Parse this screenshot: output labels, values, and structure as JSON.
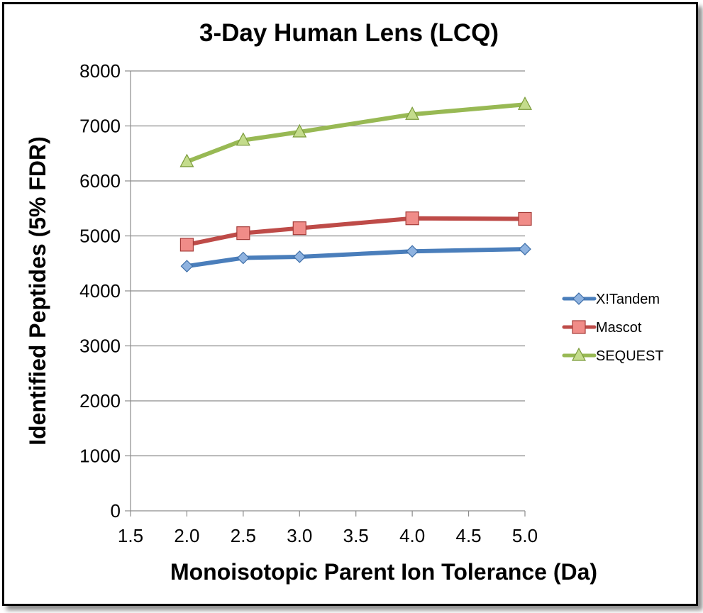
{
  "chart_data": {
    "type": "line",
    "title": "3-Day Human Lens (LCQ)",
    "xlabel": "Monoisotopic Parent Ion Tolerance (Da)",
    "ylabel": "Identified Peptides (5% FDR)",
    "xlim": [
      1.5,
      5.0
    ],
    "ylim": [
      0,
      8000
    ],
    "x_ticks": [
      "1.5",
      "2.0",
      "2.5",
      "3.0",
      "3.5",
      "4.0",
      "4.5",
      "5.0"
    ],
    "y_ticks": [
      "0",
      "1000",
      "2000",
      "3000",
      "4000",
      "5000",
      "6000",
      "7000",
      "8000"
    ],
    "grid": "horizontal",
    "legend_position": "right",
    "x": [
      2.0,
      2.5,
      3.0,
      4.0,
      5.0
    ],
    "series": [
      {
        "name": "X!Tandem",
        "values": [
          4450,
          4600,
          4620,
          4720,
          4760
        ],
        "color": "#4a7ebb",
        "marker": "diamond"
      },
      {
        "name": "Mascot",
        "values": [
          4840,
          5050,
          5140,
          5320,
          5310
        ],
        "color": "#be4b48",
        "marker": "square"
      },
      {
        "name": "SEQUEST",
        "values": [
          6350,
          6740,
          6890,
          7210,
          7390
        ],
        "color": "#98b954",
        "marker": "triangle"
      }
    ]
  }
}
